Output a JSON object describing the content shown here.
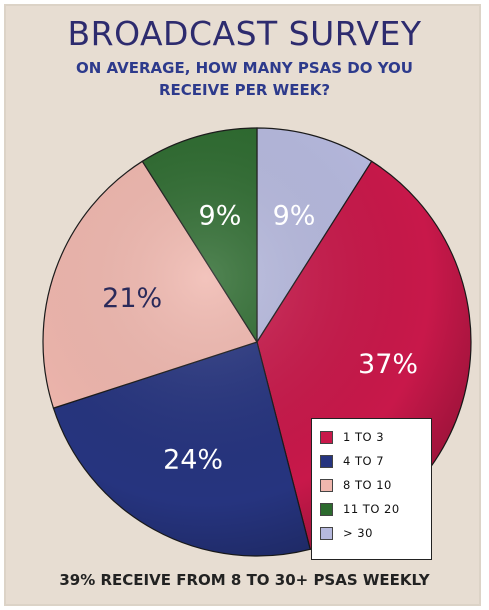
{
  "colors": {
    "background": "#e7ddd2",
    "red": "#c8184a",
    "blue": "#26347f",
    "pink": "#f0b7ae",
    "green": "#2c6a2e",
    "lavender": "#b6b9de",
    "title": "#2d2b6e"
  },
  "chart_data": {
    "type": "pie",
    "title": "BROADCAST SURVEY",
    "subtitle": [
      "ON AVERAGE, HOW MANY PSAS DO YOU",
      "RECEIVE PER WEEK?"
    ],
    "footer": "39% RECEIVE FROM 8 TO 30+ PSAS WEEKLY",
    "start_angle_deg": 0,
    "direction": "clockwise",
    "slices": [
      {
        "value": 9,
        "label": "9%",
        "color": "#b6b9de",
        "legend_index": 4
      },
      {
        "value": 37,
        "label": "37%",
        "color": "#c8184a",
        "legend_index": 0
      },
      {
        "value": 24,
        "label": "24%",
        "color": "#26347f",
        "legend_index": 1
      },
      {
        "value": 21,
        "label": "21%",
        "color": "#f0b7ae",
        "legend_index": 2
      },
      {
        "value": 9,
        "label": "9%",
        "color": "#2c6a2e",
        "legend_index": 3
      }
    ],
    "legend": {
      "placement": "bottom-right",
      "items": [
        {
          "label": "1 TO 3",
          "color": "#c8184a"
        },
        {
          "label": "4 TO 7",
          "color": "#26347f"
        },
        {
          "label": "8 TO 10",
          "color": "#f0b7ae"
        },
        {
          "label": "11 TO 20",
          "color": "#2c6a2e"
        },
        {
          "label": "> 30",
          "color": "#b6b9de"
        }
      ]
    }
  }
}
